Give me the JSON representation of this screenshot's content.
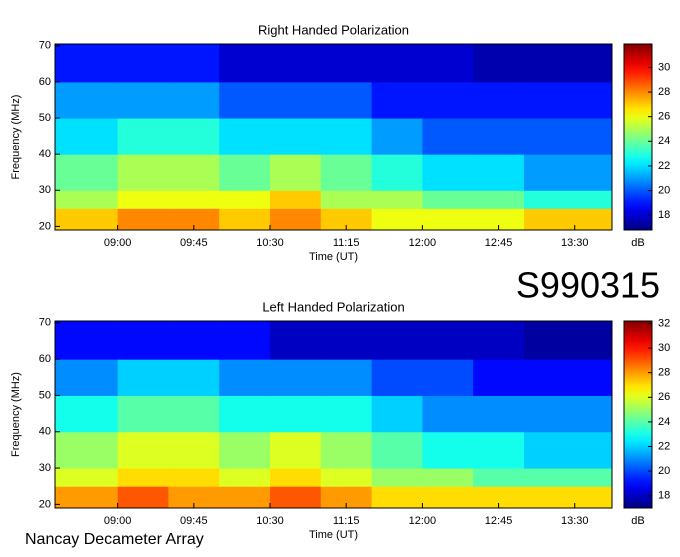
{
  "chart_data": [
    {
      "type": "heatmap",
      "title": "Right Handed Polarization",
      "xlabel": "Time (UT)",
      "ylabel": "Frequency (MHz)",
      "colormap": "jet",
      "x_bins": [
        503,
        540,
        570,
        600,
        630,
        660,
        690,
        720,
        750,
        780,
        832
      ],
      "y_bins": [
        19,
        25,
        30,
        40,
        50,
        60,
        70.5
      ],
      "z": [
        [
          27,
          28,
          28,
          27,
          28,
          27,
          26,
          26,
          26,
          27
        ],
        [
          25,
          26,
          26,
          26,
          27,
          25,
          25,
          24,
          24,
          23
        ],
        [
          24,
          25,
          25,
          24,
          25,
          24,
          23,
          22,
          22,
          21
        ],
        [
          22,
          23,
          23,
          22,
          22,
          22,
          21,
          20,
          20,
          20
        ],
        [
          21,
          21,
          21,
          20,
          20,
          20,
          19,
          19,
          19,
          19
        ],
        [
          19,
          19,
          19,
          18,
          18,
          18,
          18,
          18,
          17.5,
          17.5
        ]
      ],
      "xlim": [
        503,
        832
      ],
      "ylim": [
        19,
        70.5
      ],
      "xticks": [
        {
          "value": 540,
          "label": "09:00"
        },
        {
          "value": 585,
          "label": "09:45"
        },
        {
          "value": 630,
          "label": "10:30"
        },
        {
          "value": 675,
          "label": "11:15"
        },
        {
          "value": 720,
          "label": "12:00"
        },
        {
          "value": 765,
          "label": "12:45"
        },
        {
          "value": 810,
          "label": "13:30"
        }
      ],
      "yticks": [
        20,
        30,
        40,
        50,
        60,
        70
      ],
      "colorbar": {
        "label": "dB",
        "lim": [
          16.8,
          31.9
        ],
        "ticks": [
          18,
          20,
          22,
          24,
          26,
          28,
          30
        ]
      }
    },
    {
      "type": "heatmap",
      "title": "Left Handed Polarization",
      "xlabel": "Time (UT)",
      "ylabel": "Frequency (MHz)",
      "colormap": "jet",
      "x_bins": [
        503,
        540,
        570,
        600,
        630,
        660,
        690,
        720,
        750,
        780,
        832
      ],
      "y_bins": [
        19,
        25,
        30,
        40,
        50,
        60,
        70.5
      ],
      "z": [
        [
          28,
          29,
          28,
          28,
          29,
          28,
          27,
          27,
          27,
          27
        ],
        [
          26,
          27,
          27,
          26,
          27,
          26,
          25,
          25,
          24,
          24
        ],
        [
          25,
          26,
          26,
          25,
          26,
          25,
          24,
          23,
          23,
          22
        ],
        [
          23,
          24,
          24,
          23,
          23,
          23,
          22,
          21,
          21,
          21
        ],
        [
          21,
          22,
          22,
          21,
          21,
          21,
          20,
          20,
          19,
          19
        ],
        [
          19,
          19,
          19,
          19,
          18,
          18,
          18,
          18,
          18,
          17.5
        ]
      ],
      "xlim": [
        503,
        832
      ],
      "ylim": [
        19,
        70.5
      ],
      "xticks": [
        {
          "value": 540,
          "label": "09:00"
        },
        {
          "value": 585,
          "label": "09:45"
        },
        {
          "value": 630,
          "label": "10:30"
        },
        {
          "value": 675,
          "label": "11:15"
        },
        {
          "value": 720,
          "label": "12:00"
        },
        {
          "value": 765,
          "label": "12:45"
        },
        {
          "value": 810,
          "label": "13:30"
        }
      ],
      "yticks": [
        20,
        30,
        40,
        50,
        60,
        70
      ],
      "colorbar": {
        "label": "dB",
        "lim": [
          17.0,
          32.2
        ],
        "ticks": [
          18,
          20,
          22,
          24,
          26,
          28,
          30,
          32
        ]
      }
    }
  ],
  "labels": {
    "id": "S990315",
    "source": "Nancay Decameter Array"
  }
}
